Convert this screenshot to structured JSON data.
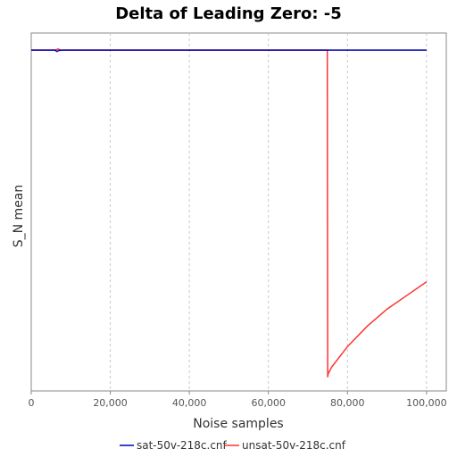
{
  "chart_data": {
    "type": "line",
    "title": "Delta of Leading Zero: -5",
    "xlabel": "Noise samples",
    "ylabel": "S_N mean",
    "xlim": [
      0,
      105000
    ],
    "ylim": [
      -1.0,
      0.05
    ],
    "x_ticks": [
      0,
      20000,
      40000,
      60000,
      80000,
      100000
    ],
    "x_tick_labels": [
      "0",
      "20,000",
      "40,000",
      "60,000",
      "80,000",
      "100,000"
    ],
    "y_ticks_shown": false,
    "grid": "vertical dashed",
    "legend_position": "bottom",
    "series": [
      {
        "name": "sat-50v-218c.cnf",
        "color": "#0000aa",
        "x": [
          0,
          6000,
          6500,
          7000,
          8000,
          20000,
          40000,
          60000,
          80000,
          100000
        ],
        "y": [
          0.0,
          0.0,
          -0.004,
          -0.001,
          0.0,
          0.0,
          0.0,
          0.0,
          0.0,
          0.0
        ]
      },
      {
        "name": "unsat-50v-218c.cnf",
        "color": "#ff3333",
        "x": [
          0,
          6000,
          6800,
          7500,
          40000,
          74900,
          75000,
          75100,
          76000,
          80000,
          85000,
          90000,
          95000,
          100000
        ],
        "y": [
          0.0,
          0.0,
          0.003,
          0.0,
          0.0,
          0.0,
          -0.96,
          -0.95,
          -0.93,
          -0.87,
          -0.81,
          -0.76,
          -0.72,
          -0.68
        ]
      }
    ]
  }
}
